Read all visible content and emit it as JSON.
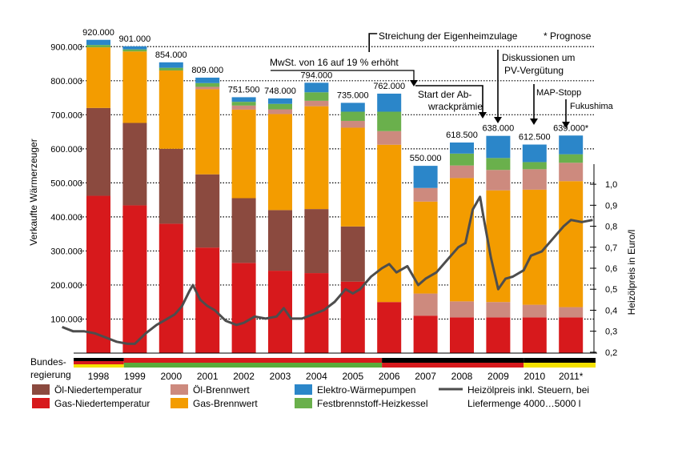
{
  "chart_data": {
    "type": "bar",
    "subtype": "stacked-bar-with-line",
    "ylabel": "Verkaufte Wärmerzeuger",
    "y2label": "Heizölpreis in Euro/l",
    "ylim": [
      0,
      950000
    ],
    "y2lim": [
      0.15,
      1.05
    ],
    "yticks": [
      "100.000",
      "200.000",
      "300.000",
      "400.000",
      "500.000",
      "600.000",
      "700.000",
      "800.000",
      "900.000"
    ],
    "y2ticks": [
      "0,2",
      "0,3",
      "0,4",
      "0,5",
      "0,6",
      "0,7",
      "0,8",
      "0,9",
      "1,0"
    ],
    "categories": [
      "1998",
      "1999",
      "2000",
      "2001",
      "2002",
      "2003",
      "2004",
      "2005",
      "2006",
      "2007",
      "2008",
      "2009",
      "2010",
      "2011*"
    ],
    "totals_labels": [
      "920.000",
      "901.000",
      "854.000",
      "809.000",
      "751.500",
      "748.000",
      "794.000",
      "735.000",
      "762.000",
      "550.000",
      "618.500",
      "638.000",
      "612.500",
      "639.000*"
    ],
    "series": [
      {
        "name": "Gas-Niedertemperatur",
        "color": "#d7191c",
        "values": [
          462000,
          434000,
          380000,
          310000,
          265000,
          242000,
          235000,
          210000,
          150000,
          110000,
          105000,
          105000,
          105000,
          105000
        ]
      },
      {
        "name": "Öl-Niedertemperatur",
        "color": "#8b4a3f",
        "values": [
          258000,
          242000,
          220000,
          215000,
          190000,
          178000,
          188000,
          162000,
          0,
          0,
          0,
          0,
          0,
          0
        ]
      },
      {
        "name": "Öl-Brennwert",
        "color": "#cd8a7e",
        "values": [
          0,
          0,
          0,
          0,
          0,
          0,
          0,
          0,
          0,
          65000,
          47000,
          45000,
          37000,
          30000
        ]
      },
      {
        "name": "Gas-Brennwert",
        "color": "#f39c00",
        "values": [
          178000,
          210000,
          230000,
          250000,
          260000,
          282000,
          302000,
          290000,
          462000,
          270000,
          362000,
          328000,
          338000,
          370000
        ]
      },
      {
        "name": "Öl-Brennwert",
        "color": "#cd8a7e",
        "values": [
          0,
          0,
          0,
          7000,
          12000,
          14000,
          16000,
          20000,
          40000,
          40000,
          37000,
          60000,
          60000,
          54000
        ]
      },
      {
        "name": "Festbrennstoff-Heizkessel",
        "color": "#6ab04c",
        "values": [
          7000,
          6000,
          8000,
          11000,
          11000,
          16000,
          25000,
          27000,
          57000,
          0,
          35000,
          35000,
          21000,
          25000
        ]
      },
      {
        "name": "Elektro-Wärmepumpen",
        "color": "#2b86c9",
        "values": [
          15000,
          9000,
          16000,
          16000,
          13500,
          16000,
          28000,
          26000,
          53000,
          65000,
          32500,
          65000,
          51500,
          55000
        ]
      }
    ],
    "line": {
      "name": "Heizölpreis inkl. Steuern, bei Liefermenge 4000…5000 l",
      "color": "#4d4d4d",
      "x": [
        1997.0,
        1997.3,
        1997.6,
        1997.9,
        1998.2,
        1998.5,
        1998.8,
        1999.0,
        1999.3,
        1999.6,
        1999.9,
        2000.1,
        2000.3,
        2000.5,
        2000.6,
        2000.8,
        2001.0,
        2001.2,
        2001.5,
        2001.8,
        2002.0,
        2002.3,
        2002.6,
        2002.9,
        2003.1,
        2003.3,
        2003.6,
        2003.9,
        2004.2,
        2004.5,
        2004.8,
        2005.0,
        2005.2,
        2005.5,
        2005.8,
        2006.0,
        2006.2,
        2006.5,
        2006.8,
        2007.0,
        2007.3,
        2007.6,
        2007.9,
        2008.1,
        2008.3,
        2008.5,
        2008.6,
        2008.8,
        2009.0,
        2009.2,
        2009.4,
        2009.7,
        2009.9,
        2010.2,
        2010.5,
        2010.8,
        2011.0,
        2011.3,
        2011.6
      ],
      "y": [
        0.32,
        0.3,
        0.3,
        0.29,
        0.27,
        0.25,
        0.24,
        0.24,
        0.29,
        0.33,
        0.36,
        0.38,
        0.42,
        0.49,
        0.52,
        0.45,
        0.42,
        0.4,
        0.35,
        0.33,
        0.34,
        0.37,
        0.36,
        0.37,
        0.41,
        0.36,
        0.36,
        0.38,
        0.4,
        0.44,
        0.5,
        0.48,
        0.5,
        0.56,
        0.6,
        0.62,
        0.58,
        0.61,
        0.52,
        0.55,
        0.58,
        0.64,
        0.7,
        0.72,
        0.88,
        0.94,
        0.84,
        0.65,
        0.5,
        0.55,
        0.56,
        0.59,
        0.66,
        0.68,
        0.74,
        0.8,
        0.83,
        0.82,
        0.83
      ]
    },
    "annotations": [
      {
        "text": "Streichung der Eigenheimzulage",
        "year": 2006
      },
      {
        "text": "MwSt. von 16 auf 19 % erhöht",
        "year": 2007
      },
      {
        "text": "Start der Ab-",
        "text2": "wrackprämie",
        "year": 2008.7
      },
      {
        "text": "Diskussionen um",
        "text2": "PV-Vergütung",
        "year": 2009
      },
      {
        "text": "MAP-Stopp",
        "year": 2010
      },
      {
        "text": "Fukushima",
        "year": 2011
      },
      {
        "text": "* Prognose"
      }
    ],
    "government": {
      "label_line1": "Bundes-",
      "label_line2": "regierung",
      "bands": [
        {
          "colors": [
            "#000000",
            "#d7191c",
            "#f4e100"
          ],
          "from": 1997.0,
          "to": 1998.7
        },
        {
          "colors": [
            "#d7191c",
            "#5aab3a"
          ],
          "from": 1998.7,
          "to": 2005.8
        },
        {
          "colors": [
            "#000000",
            "#d7191c"
          ],
          "from": 2005.8,
          "to": 2009.7
        },
        {
          "colors": [
            "#000000",
            "#f4e100"
          ],
          "from": 2009.7,
          "to": 2011.8
        }
      ]
    },
    "legend": [
      {
        "label": "Öl-Niedertemperatur",
        "color": "#8b4a3f",
        "kind": "box"
      },
      {
        "label": "Öl-Brennwert",
        "color": "#cd8a7e",
        "kind": "box"
      },
      {
        "label": "Elektro-Wärmepumpen",
        "color": "#2b86c9",
        "kind": "box"
      },
      {
        "label": "Heizölpreis inkl. Steuern, bei",
        "label2": "Liefermenge 4000…5000 l",
        "color": "#4d4d4d",
        "kind": "line"
      },
      {
        "label": "Gas-Niedertemperatur",
        "color": "#d7191c",
        "kind": "box"
      },
      {
        "label": "Gas-Brennwert",
        "color": "#f39c00",
        "kind": "box"
      },
      {
        "label": "Festbrennstoff-Heizkessel",
        "color": "#6ab04c",
        "kind": "box"
      }
    ],
    "grid": "dotted-horizontal",
    "legend_placement": "bottom"
  }
}
